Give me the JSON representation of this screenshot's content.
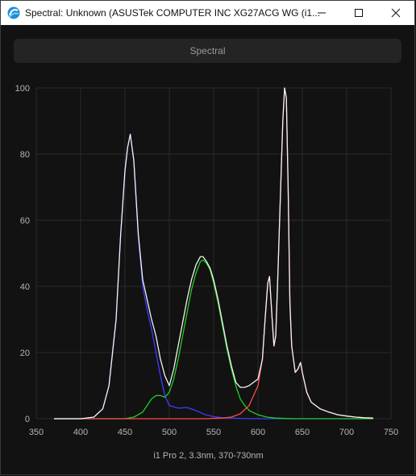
{
  "window": {
    "title": "Spectral: Unknown (ASUSTek COMPUTER INC XG27ACG WG (i1...",
    "controls": {
      "minimize_icon": "minimize-icon",
      "maximize_icon": "maximize-icon",
      "close_icon": "close-icon"
    }
  },
  "toolbar": {
    "spectral_label": "Spectral"
  },
  "footer": {
    "label": "i1 Pro 2, 3.3nm, 370-730nm"
  },
  "colors": {
    "background": "#121212",
    "grid": "#2a2a2a",
    "blue": "#3d3dff",
    "green": "#22cc22",
    "red": "#ff4a4a",
    "white": "#f2f2f2"
  },
  "chart_data": {
    "type": "line",
    "title": "",
    "xlabel": "",
    "ylabel": "",
    "xlim": [
      350,
      750
    ],
    "ylim": [
      0,
      100
    ],
    "xticks": [
      350,
      400,
      450,
      500,
      550,
      600,
      650,
      700,
      750
    ],
    "yticks": [
      0,
      20,
      40,
      60,
      80,
      100
    ],
    "grid": true,
    "series": [
      {
        "color": "blue",
        "x": [
          370,
          400,
          415,
          425,
          432,
          440,
          445,
          450,
          453,
          456,
          460,
          465,
          470,
          475,
          480,
          485,
          490,
          495,
          500,
          510,
          520,
          530,
          540,
          550,
          560,
          580,
          600,
          650,
          730
        ],
        "y": [
          0,
          0,
          0.5,
          3,
          10,
          30,
          55,
          75,
          82,
          86,
          78,
          55,
          40,
          33,
          27,
          20,
          13,
          7,
          4,
          3.2,
          3.4,
          2.5,
          1.3,
          0.6,
          0.3,
          0.1,
          0,
          0,
          0
        ]
      },
      {
        "color": "green",
        "x": [
          370,
          450,
          460,
          470,
          475,
          480,
          485,
          490,
          495,
          500,
          505,
          510,
          515,
          520,
          525,
          530,
          535,
          538,
          542,
          546,
          550,
          555,
          560,
          565,
          570,
          575,
          580,
          585,
          590,
          600,
          610,
          620,
          640,
          730
        ],
        "y": [
          0,
          0,
          0.5,
          2,
          4,
          6,
          7,
          7,
          6.5,
          8,
          12,
          18,
          25,
          32,
          39,
          44,
          47.5,
          48,
          47,
          45,
          41,
          35,
          28,
          21,
          15,
          10,
          6,
          4,
          2.5,
          1.2,
          0.5,
          0.2,
          0,
          0
        ]
      },
      {
        "color": "red",
        "x": [
          370,
          540,
          560,
          570,
          580,
          590,
          600,
          605,
          608,
          611,
          613,
          616,
          618,
          620,
          622,
          625,
          628,
          630,
          632,
          634,
          636,
          638,
          640,
          642,
          645,
          648,
          650,
          655,
          660,
          665,
          670,
          680,
          690,
          700,
          710,
          720,
          730
        ],
        "y": [
          0,
          0,
          0.2,
          0.5,
          1.5,
          4,
          10,
          18,
          30,
          41,
          43,
          30,
          22,
          25,
          40,
          65,
          90,
          100,
          97,
          70,
          35,
          22,
          18,
          14,
          15,
          17,
          14,
          8,
          5,
          4,
          3,
          2,
          1.2,
          0.8,
          0.5,
          0.3,
          0.2
        ]
      },
      {
        "color": "white",
        "x": [
          370,
          400,
          415,
          425,
          432,
          440,
          445,
          450,
          453,
          456,
          460,
          465,
          470,
          475,
          480,
          485,
          490,
          495,
          500,
          505,
          510,
          515,
          520,
          525,
          530,
          535,
          538,
          542,
          546,
          550,
          555,
          560,
          565,
          570,
          575,
          580,
          585,
          590,
          595,
          600,
          605,
          608,
          611,
          613,
          616,
          618,
          620,
          622,
          625,
          628,
          630,
          632,
          634,
          636,
          638,
          640,
          642,
          645,
          648,
          650,
          655,
          660,
          665,
          670,
          680,
          690,
          700,
          710,
          720,
          730
        ],
        "y": [
          0,
          0,
          0.5,
          3,
          10,
          30,
          55,
          75,
          82,
          86,
          78,
          56,
          42,
          36,
          30,
          25,
          18,
          13,
          10,
          15,
          22,
          29,
          36,
          42,
          46.5,
          49,
          49,
          47.5,
          45.5,
          42,
          36,
          29,
          22,
          16,
          11,
          9.5,
          9.5,
          10,
          11,
          12,
          18,
          30,
          41,
          43,
          30,
          22,
          25,
          40,
          65,
          90,
          100,
          97,
          70,
          35,
          22,
          18,
          14,
          15,
          17,
          14,
          8,
          5,
          4,
          3,
          2,
          1.2,
          0.8,
          0.5,
          0.3,
          0.2
        ]
      }
    ]
  }
}
